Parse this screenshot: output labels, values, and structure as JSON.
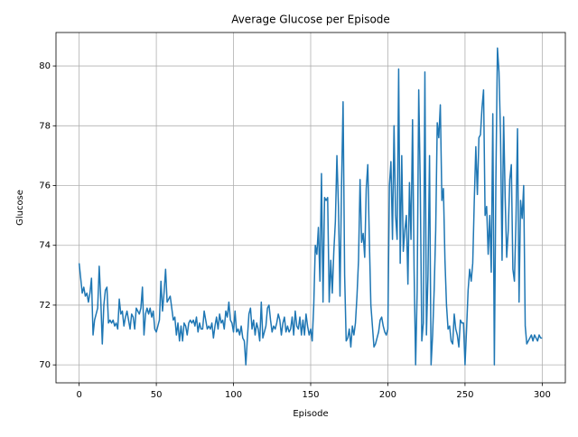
{
  "chart_data": {
    "type": "line",
    "title": "Average Glucose per Episode",
    "x_label": "Episode",
    "y_label": "Glucose",
    "x": [
      0,
      1,
      2,
      3,
      4,
      5,
      6,
      7,
      8,
      9,
      10,
      11,
      12,
      13,
      14,
      15,
      16,
      17,
      18,
      19,
      20,
      21,
      22,
      23,
      24,
      25,
      26,
      27,
      28,
      29,
      30,
      31,
      32,
      33,
      34,
      35,
      36,
      37,
      38,
      39,
      40,
      41,
      42,
      43,
      44,
      45,
      46,
      47,
      48,
      49,
      50,
      51,
      52,
      53,
      54,
      55,
      56,
      57,
      58,
      59,
      60,
      61,
      62,
      63,
      64,
      65,
      66,
      67,
      68,
      69,
      70,
      71,
      72,
      73,
      74,
      75,
      76,
      77,
      78,
      79,
      80,
      81,
      82,
      83,
      84,
      85,
      86,
      87,
      88,
      89,
      90,
      91,
      92,
      93,
      94,
      95,
      96,
      97,
      98,
      99,
      100,
      101,
      102,
      103,
      104,
      105,
      106,
      107,
      108,
      109,
      110,
      111,
      112,
      113,
      114,
      115,
      116,
      117,
      118,
      119,
      120,
      121,
      122,
      123,
      124,
      125,
      126,
      127,
      128,
      129,
      130,
      131,
      132,
      133,
      134,
      135,
      136,
      137,
      138,
      139,
      140,
      141,
      142,
      143,
      144,
      145,
      146,
      147,
      148,
      149,
      150,
      151,
      152,
      153,
      154,
      155,
      156,
      157,
      158,
      159,
      160,
      161,
      162,
      163,
      164,
      165,
      166,
      167,
      168,
      169,
      170,
      171,
      172,
      173,
      174,
      175,
      176,
      177,
      178,
      179,
      180,
      181,
      182,
      183,
      184,
      185,
      186,
      187,
      188,
      189,
      190,
      191,
      192,
      193,
      194,
      195,
      196,
      197,
      198,
      199,
      200,
      201,
      202,
      203,
      204,
      205,
      206,
      207,
      208,
      209,
      210,
      211,
      212,
      213,
      214,
      215,
      216,
      217,
      218,
      219,
      220,
      221,
      222,
      223,
      224,
      225,
      226,
      227,
      228,
      229,
      230,
      231,
      232,
      233,
      234,
      235,
      236,
      237,
      238,
      239,
      240,
      241,
      242,
      243,
      244,
      245,
      246,
      247,
      248,
      249,
      250,
      251,
      252,
      253,
      254,
      255,
      256,
      257,
      258,
      259,
      260,
      261,
      262,
      263,
      264,
      265,
      266,
      267,
      268,
      269,
      270,
      271,
      272,
      273,
      274,
      275,
      276,
      277,
      278,
      279,
      280,
      281,
      282,
      283,
      284,
      285,
      286,
      287,
      288,
      289,
      290,
      291,
      292,
      293,
      294,
      295,
      296,
      297,
      298,
      299,
      300
    ],
    "series": [
      {
        "name": "Glucose",
        "color": "#1f77b4",
        "values": [
          73.4,
          72.9,
          72.4,
          72.6,
          72.3,
          72.4,
          72.1,
          72.4,
          72.9,
          71.0,
          71.5,
          71.7,
          71.9,
          73.3,
          72.2,
          70.7,
          72.0,
          72.5,
          72.6,
          71.4,
          71.5,
          71.4,
          71.5,
          71.3,
          71.4,
          71.2,
          72.2,
          71.7,
          71.8,
          71.3,
          71.6,
          71.8,
          71.5,
          71.2,
          71.7,
          71.6,
          71.2,
          71.9,
          71.8,
          71.7,
          71.9,
          72.6,
          71.0,
          71.7,
          71.9,
          71.7,
          71.9,
          71.6,
          71.8,
          71.2,
          71.1,
          71.3,
          71.5,
          72.8,
          71.8,
          72.4,
          73.2,
          72.1,
          72.2,
          72.3,
          71.9,
          71.5,
          71.6,
          71.0,
          71.4,
          70.8,
          71.3,
          70.8,
          71.4,
          71.3,
          71.0,
          71.4,
          71.5,
          71.4,
          71.5,
          71.3,
          71.6,
          71.1,
          71.4,
          71.2,
          71.2,
          71.8,
          71.5,
          71.2,
          71.3,
          71.2,
          71.4,
          70.9,
          71.3,
          71.6,
          71.2,
          71.7,
          71.4,
          71.5,
          71.2,
          71.8,
          71.6,
          72.1,
          71.5,
          71.4,
          71.1,
          71.8,
          71.1,
          71.2,
          71.0,
          71.3,
          70.9,
          70.8,
          70.0,
          70.9,
          71.7,
          71.9,
          71.2,
          71.5,
          71.0,
          71.4,
          71.2,
          70.8,
          72.1,
          70.9,
          71.1,
          71.3,
          71.9,
          72.0,
          71.5,
          71.1,
          71.3,
          71.2,
          71.4,
          71.7,
          71.5,
          71.0,
          71.4,
          71.6,
          71.1,
          71.3,
          71.1,
          71.2,
          71.6,
          71.0,
          71.8,
          71.3,
          71.2,
          71.6,
          71.0,
          71.5,
          71.0,
          71.7,
          71.3,
          71.0,
          71.2,
          70.8,
          72.0,
          74.0,
          73.7,
          74.6,
          72.8,
          76.4,
          72.1,
          75.6,
          75.5,
          75.6,
          72.1,
          73.5,
          72.4,
          73.8,
          74.8,
          77.0,
          75.3,
          72.3,
          76.0,
          78.8,
          73.0,
          70.8,
          70.9,
          71.2,
          70.6,
          71.3,
          71.0,
          71.4,
          72.3,
          73.5,
          76.2,
          74.1,
          74.4,
          73.6,
          75.9,
          76.7,
          74.2,
          72.0,
          71.3,
          70.6,
          70.7,
          70.9,
          71.1,
          71.5,
          71.6,
          71.3,
          71.1,
          71.0,
          71.2,
          76.0,
          76.8,
          74.2,
          78.0,
          75.0,
          74.2,
          79.9,
          73.4,
          77.0,
          73.8,
          74.5,
          75.0,
          72.7,
          76.1,
          74.2,
          78.2,
          73.2,
          70.0,
          72.5,
          79.2,
          76.0,
          70.8,
          71.4,
          79.8,
          71.0,
          73.0,
          77.0,
          70.0,
          71.0,
          72.5,
          74.5,
          78.1,
          77.6,
          78.7,
          75.5,
          75.9,
          73.5,
          72.0,
          71.2,
          71.3,
          70.8,
          70.7,
          71.7,
          71.2,
          71.0,
          70.6,
          71.5,
          71.4,
          71.4,
          70.0,
          71.2,
          72.5,
          73.2,
          72.8,
          73.4,
          75.5,
          77.3,
          75.7,
          77.6,
          77.7,
          78.6,
          79.2,
          75.0,
          75.3,
          73.7,
          75.0,
          73.1,
          78.4,
          70.0,
          76.2,
          80.6,
          79.8,
          77.7,
          73.5,
          78.3,
          75.6,
          73.6,
          74.5,
          76.2,
          76.7,
          73.2,
          72.8,
          74.8,
          77.9,
          72.1,
          75.5,
          74.9,
          76.0,
          71.3,
          70.7,
          70.8,
          70.9,
          71.0,
          70.8,
          71.0,
          70.9,
          70.8,
          71.0,
          70.9,
          70.9
        ]
      }
    ],
    "xlim": [
      -15,
      315
    ],
    "ylim": [
      69.4,
      81.12
    ],
    "xticks": [
      0,
      50,
      100,
      150,
      200,
      250,
      300
    ],
    "yticks": [
      70,
      72,
      74,
      76,
      78,
      80
    ],
    "grid": true
  }
}
